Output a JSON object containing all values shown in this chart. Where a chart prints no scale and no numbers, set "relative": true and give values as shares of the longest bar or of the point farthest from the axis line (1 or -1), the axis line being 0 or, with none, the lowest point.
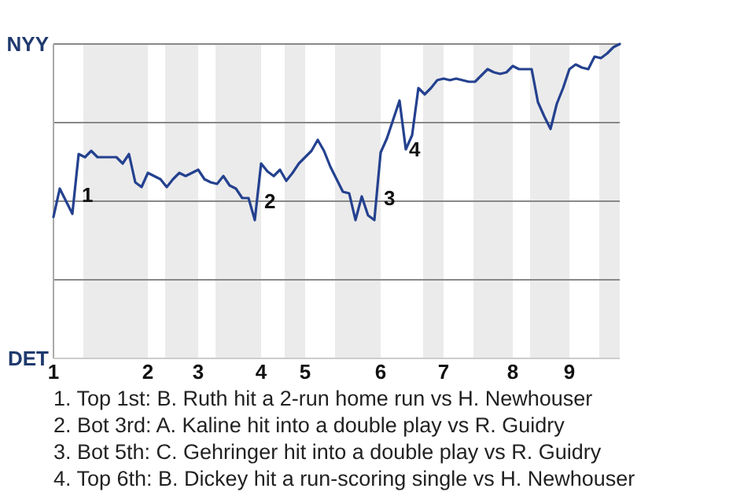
{
  "chart_data": {
    "type": "line",
    "relative": true,
    "categories": [
      "1",
      null,
      null,
      null,
      null,
      null,
      null,
      null,
      null,
      null,
      null,
      null,
      null,
      null,
      null,
      "2",
      null,
      null,
      null,
      null,
      null,
      null,
      null,
      "3",
      null,
      null,
      null,
      null,
      null,
      null,
      null,
      null,
      null,
      "4",
      null,
      null,
      null,
      null,
      null,
      null,
      "5",
      null,
      null,
      null,
      null,
      null,
      null,
      null,
      null,
      null,
      null,
      null,
      "6",
      null,
      null,
      null,
      null,
      null,
      null,
      null,
      null,
      null,
      "7",
      null,
      null,
      null,
      null,
      null,
      null,
      null,
      null,
      null,
      null,
      "8",
      null,
      null,
      null,
      null,
      null,
      null,
      null,
      null,
      "9",
      null,
      null,
      null,
      null,
      null,
      null,
      null,
      null
    ],
    "series": [
      {
        "color": "#24418f",
        "values": [
          0.45,
          0.54,
          0.5,
          0.46,
          0.65,
          0.64,
          0.66,
          0.64,
          0.64,
          0.64,
          0.64,
          0.62,
          0.65,
          0.56,
          0.545,
          0.59,
          0.58,
          0.57,
          0.545,
          0.57,
          0.59,
          0.58,
          0.59,
          0.6,
          0.57,
          0.56,
          0.555,
          0.58,
          0.55,
          0.54,
          0.51,
          0.51,
          0.44,
          0.62,
          0.595,
          0.58,
          0.6,
          0.565,
          0.59,
          0.62,
          0.64,
          0.66,
          0.695,
          0.66,
          0.61,
          0.57,
          0.53,
          0.525,
          0.44,
          0.515,
          0.455,
          0.44,
          0.655,
          0.7,
          0.76,
          0.82,
          0.665,
          0.71,
          0.86,
          0.84,
          0.86,
          0.885,
          0.89,
          0.885,
          0.89,
          0.885,
          0.88,
          0.88,
          0.9,
          0.92,
          0.91,
          0.905,
          0.91,
          0.93,
          0.92,
          0.92,
          0.92,
          0.815,
          0.77,
          0.73,
          0.81,
          0.86,
          0.92,
          0.935,
          0.925,
          0.92,
          0.96,
          0.955,
          0.97,
          0.99,
          1.0
        ]
      }
    ],
    "marker": "none",
    "line_style": "solid",
    "annotations": [
      "NYY",
      "DET",
      "1",
      "2",
      "3",
      "4",
      "1. Top 1st: B. Ruth hit a 2-run home run vs H. Newhouser",
      "2. Bot 3rd: A. Kaline hit into a double play vs R. Guidry",
      "3. Bot 5th: C. Gehringer hit into a double play vs R. Guidry",
      "4. Top 6th: B. Dickey hit a run-scoring single vs H. Newhouser"
    ]
  }
}
